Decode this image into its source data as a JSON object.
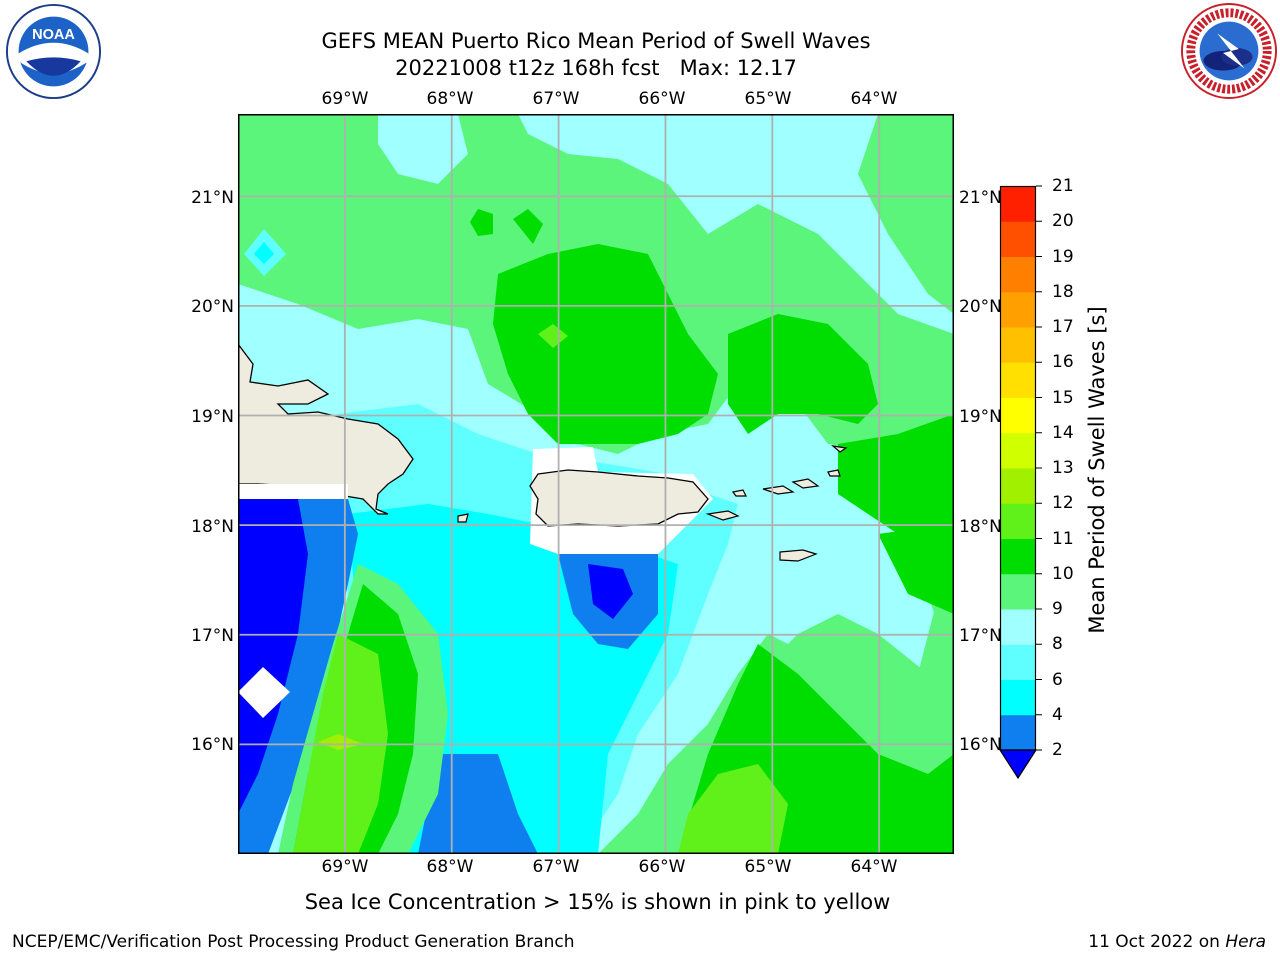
{
  "title": {
    "line1": "GEFS MEAN Puerto Rico Mean Period of Swell Waves",
    "line2": "20221008 t12z 168h fcst   Max: 12.17"
  },
  "logos": {
    "noaa_text": "NOAA",
    "nws_text": "NATIONAL WEATHER SERVICE"
  },
  "map": {
    "lon_ticks": [
      "69°W",
      "68°W",
      "67°W",
      "66°W",
      "65°W",
      "64°W"
    ],
    "lat_ticks": [
      "21°N",
      "20°N",
      "19°N",
      "18°N",
      "17°N",
      "16°N"
    ],
    "lon_values": [
      -69,
      -68,
      -67,
      -66,
      -65,
      -64
    ],
    "lat_values": [
      21,
      20,
      19,
      18,
      17,
      16
    ],
    "lon_range": [
      -70,
      -63.3
    ],
    "lat_range": [
      15,
      21.75
    ],
    "land_color": "#eeecdf",
    "grid_color": "#b0b0b0"
  },
  "colorbar": {
    "title": "Mean Period of Swell Waves [s]",
    "levels": [
      "2",
      "4",
      "6",
      "8",
      "9",
      "10",
      "11",
      "12",
      "13",
      "14",
      "15",
      "16",
      "17",
      "18",
      "19",
      "20",
      "21"
    ],
    "colors": [
      "#0000ff",
      "#0f7ff0",
      "#00ffff",
      "#60ffff",
      "#a0ffff",
      "#5af57a",
      "#00dd00",
      "#60f01a",
      "#a0f000",
      "#d0ff00",
      "#ffff00",
      "#ffe000",
      "#ffc000",
      "#ffa000",
      "#ff8000",
      "#ff5000",
      "#ff2000",
      "#ff0000"
    ],
    "under_color": "#0000ff"
  },
  "footnote": "Sea Ice Concentration > 15% is shown in pink to yellow",
  "credit_left": "NCEP/EMC/Verification Post Processing Product Generation Branch",
  "credit_right_date": "11 Oct 2022 on ",
  "credit_right_host": "Hera"
}
